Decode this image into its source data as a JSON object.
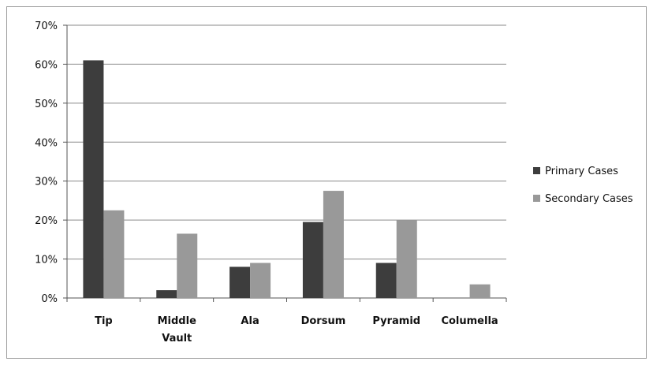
{
  "chart_data": {
    "type": "bar",
    "title": "",
    "xlabel": "",
    "ylabel": "",
    "categories": [
      [
        "Tip"
      ],
      [
        "Middle",
        "Vault"
      ],
      [
        "Ala"
      ],
      [
        "Dorsum"
      ],
      [
        "Pyramid"
      ],
      [
        "Columella"
      ]
    ],
    "series": [
      {
        "name": "Primary Cases",
        "color": "#3d3d3d",
        "values": [
          61,
          2,
          8,
          19.5,
          9,
          0
        ]
      },
      {
        "name": "Secondary Cases",
        "color": "#999999",
        "values": [
          22.5,
          16.5,
          9,
          27.5,
          20,
          3.5
        ]
      }
    ],
    "ylim": [
      0,
      70
    ],
    "yticks": [
      0,
      10,
      20,
      30,
      40,
      50,
      60,
      70
    ],
    "ytick_labels": [
      "0%",
      "10%",
      "20%",
      "30%",
      "40%",
      "50%",
      "60%",
      "70%"
    ],
    "grid": true,
    "legend_position": "right"
  }
}
